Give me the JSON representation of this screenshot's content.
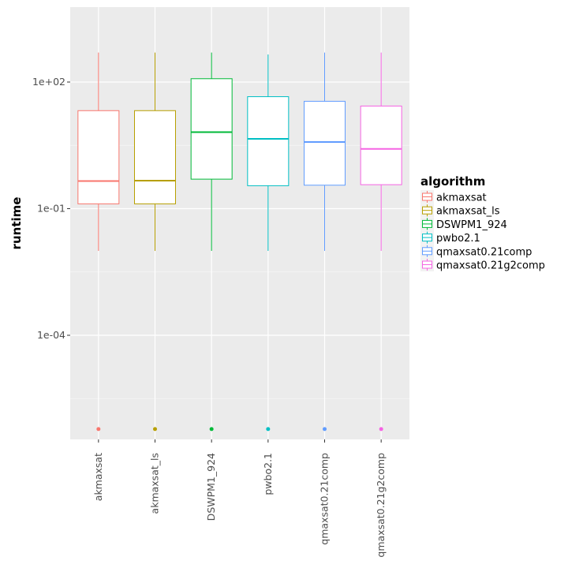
{
  "chart_data": {
    "type": "boxplot",
    "y_scale": "log10",
    "ylim": [
      1e-07,
      1000
    ],
    "ylabel": "runtime",
    "xlabel": "",
    "y_ticks": [
      {
        "value": 0.0001,
        "label": "1e-04"
      },
      {
        "value": 0.1,
        "label": "1e-01"
      },
      {
        "value": 100,
        "label": "1e+02"
      }
    ],
    "grid": true,
    "legend": {
      "title": "algorithm",
      "position": "right"
    },
    "categories": [
      "akmaxsat",
      "akmaxsat_ls",
      "DSWPM1_924",
      "pwbo2.1",
      "qmaxsat0.21comp",
      "qmaxsat0.21g2comp"
    ],
    "series": [
      {
        "name": "akmaxsat",
        "color": "#F8766D",
        "whisker_low": 0.01,
        "q1": 0.13,
        "median": 0.45,
        "q3": 21,
        "whisker_high": 500,
        "outliers": [
          6e-07
        ]
      },
      {
        "name": "akmaxsat_ls",
        "color": "#B79F00",
        "whisker_low": 0.01,
        "q1": 0.13,
        "median": 0.46,
        "q3": 21,
        "whisker_high": 500,
        "outliers": [
          6e-07
        ]
      },
      {
        "name": "DSWPM1_924",
        "color": "#00BA38",
        "whisker_low": 0.01,
        "q1": 0.5,
        "median": 6.5,
        "q3": 120,
        "whisker_high": 500,
        "outliers": [
          6e-07
        ]
      },
      {
        "name": "pwbo2.1",
        "color": "#00BFC4",
        "whisker_low": 0.01,
        "q1": 0.35,
        "median": 4.5,
        "q3": 45,
        "whisker_high": 450,
        "outliers": [
          6e-07
        ]
      },
      {
        "name": "qmaxsat0.21comp",
        "color": "#619CFF",
        "whisker_low": 0.01,
        "q1": 0.36,
        "median": 3.8,
        "q3": 35,
        "whisker_high": 500,
        "outliers": [
          6e-07
        ]
      },
      {
        "name": "qmaxsat0.21g2comp",
        "color": "#F564E3",
        "whisker_low": 0.01,
        "q1": 0.37,
        "median": 2.6,
        "q3": 27,
        "whisker_high": 500,
        "outliers": [
          6e-07
        ]
      }
    ]
  }
}
